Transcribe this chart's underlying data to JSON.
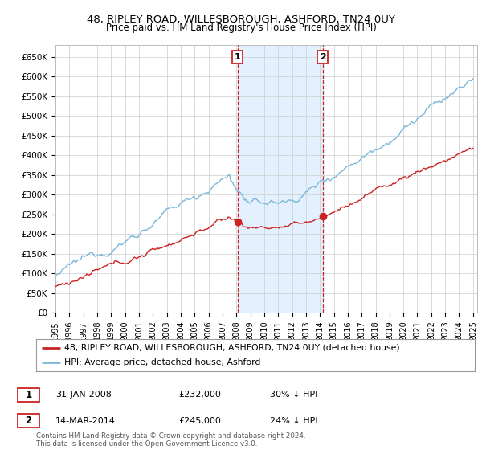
{
  "title": "48, RIPLEY ROAD, WILLESBOROUGH, ASHFORD, TN24 0UY",
  "subtitle": "Price paid vs. HM Land Registry's House Price Index (HPI)",
  "ylim": [
    0,
    680000
  ],
  "yticks": [
    0,
    50000,
    100000,
    150000,
    200000,
    250000,
    300000,
    350000,
    400000,
    450000,
    500000,
    550000,
    600000,
    650000
  ],
  "ytick_labels": [
    "£0",
    "£50K",
    "£100K",
    "£150K",
    "£200K",
    "£250K",
    "£300K",
    "£350K",
    "£400K",
    "£450K",
    "£500K",
    "£550K",
    "£600K",
    "£650K"
  ],
  "hpi_color": "#7ab8d9",
  "property_color": "#cc2222",
  "sale1_date_year": 2008.08,
  "sale1_price": 232000,
  "sale1_label": "1",
  "sale1_date_str": "31-JAN-2008",
  "sale1_pct": "30%",
  "sale2_date_year": 2014.21,
  "sale2_price": 245000,
  "sale2_label": "2",
  "sale2_date_str": "14-MAR-2014",
  "sale2_pct": "24%",
  "legend_property": "48, RIPLEY ROAD, WILLESBOROUGH, ASHFORD, TN24 0UY (detached house)",
  "legend_hpi": "HPI: Average price, detached house, Ashford",
  "footer": "Contains HM Land Registry data © Crown copyright and database right 2024.\nThis data is licensed under the Open Government Licence v3.0.",
  "bg_color": "#ffffff",
  "plot_bg_color": "#ffffff",
  "grid_color": "#cccccc",
  "shaded_region_color": "#ddeeff",
  "title_fontsize": 9.5,
  "subtitle_fontsize": 8.5
}
